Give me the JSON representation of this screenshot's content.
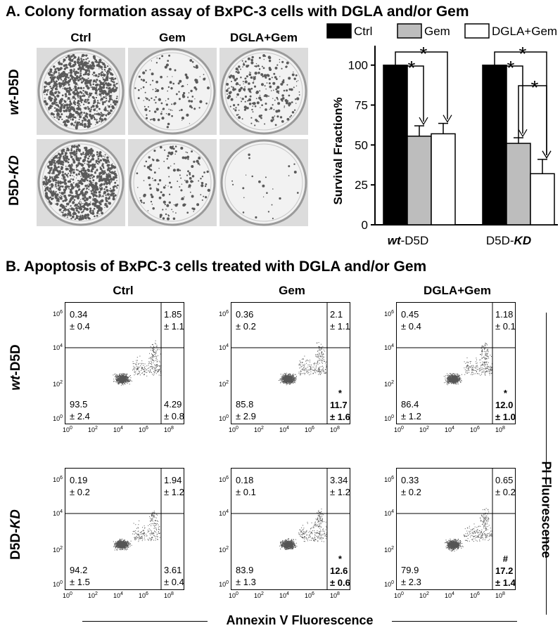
{
  "panel_a": {
    "title": "A. Colony formation assay of BxPC-3 cells with DGLA and/or Gem",
    "column_headers": [
      "Ctrl",
      "Gem",
      "DGLA+Gem"
    ],
    "row_labels": [
      {
        "italic": "wt",
        "rest": "-D5D"
      },
      {
        "plain": "D5D-",
        "italic": "KD"
      }
    ]
  },
  "panel_b": {
    "title": "B. Apoptosis of BxPC-3 cells treated with DGLA and/or Gem",
    "column_headers": [
      "Ctrl",
      "Gem",
      "DGLA+Gem"
    ],
    "row_labels": [
      {
        "italic": "wt",
        "rest": "-D5D"
      },
      {
        "plain": "D5D-",
        "italic": "KD"
      }
    ],
    "x_axis_label": "Annexin V Fluorescence",
    "y_axis_label": "PI Fluorescence",
    "tick_labels": [
      "10",
      "10",
      "10",
      "10",
      "10"
    ],
    "tick_exponents": [
      "0",
      "2",
      "4",
      "6",
      "8"
    ],
    "plots": [
      {
        "ul": [
          "0.34",
          "± 0.4"
        ],
        "ur": [
          "1.85",
          "± 1.1"
        ],
        "ll": [
          "93.5",
          "± 2.4"
        ],
        "lr": [
          "4.29",
          "± 0.8"
        ],
        "mark": "",
        "bold": false
      },
      {
        "ul": [
          "0.36",
          "± 0.2"
        ],
        "ur": [
          "2.1",
          "± 1.1"
        ],
        "ll": [
          "85.8",
          "± 2.9"
        ],
        "lr": [
          "11.7",
          "± 1.6"
        ],
        "mark": "*",
        "bold": true
      },
      {
        "ul": [
          "0.45",
          "± 0.4"
        ],
        "ur": [
          "1.18",
          "± 0.1"
        ],
        "ll": [
          "86.4",
          "± 1.2"
        ],
        "lr": [
          "12.0",
          "± 1.0"
        ],
        "mark": "*",
        "bold": true
      },
      {
        "ul": [
          "0.19",
          "± 0.2"
        ],
        "ur": [
          "1.94",
          "± 1.2"
        ],
        "ll": [
          "94.2",
          "± 1.5"
        ],
        "lr": [
          "3.61",
          "± 0.4"
        ],
        "mark": "",
        "bold": false
      },
      {
        "ul": [
          "0.18",
          "± 0.1"
        ],
        "ur": [
          "3.34",
          "± 1.2"
        ],
        "ll": [
          "83.9",
          "± 1.3"
        ],
        "lr": [
          "12.6",
          "± 0.6"
        ],
        "mark": "*",
        "bold": true
      },
      {
        "ul": [
          "0.33",
          "± 0.2"
        ],
        "ur": [
          "0.65",
          "± 0.2"
        ],
        "ll": [
          "79.9",
          "± 2.3"
        ],
        "lr": [
          "17.2",
          "± 1.4"
        ],
        "mark": "#",
        "bold": true
      }
    ]
  },
  "chart_data": {
    "type": "bar",
    "title": "",
    "ylabel": "Survival Fraction%",
    "xlabel": "",
    "ylim": [
      0,
      110
    ],
    "yticks": [
      "0",
      "25",
      "50",
      "75",
      "100"
    ],
    "groups": [
      {
        "italic": "wt",
        "rest": "-D5D"
      },
      {
        "plain": "D5D-",
        "italic": "KD"
      }
    ],
    "legend_position": "top",
    "series": [
      {
        "name": "Ctrl",
        "color": "#000000",
        "values": [
          100,
          100
        ],
        "errors": [
          0,
          0
        ]
      },
      {
        "name": "Gem",
        "color": "#bdbdbd",
        "values": [
          55.5,
          51
        ],
        "errors": [
          6.5,
          3.5
        ]
      },
      {
        "name": "DGLA+Gem",
        "color": "#ffffff",
        "values": [
          57,
          32
        ],
        "errors": [
          6.5,
          9
        ]
      }
    ],
    "significance_mark": "*",
    "significance": [
      {
        "group": 0,
        "from": 0,
        "to": 1,
        "level": 0
      },
      {
        "group": 0,
        "from": 0,
        "to": 2,
        "level": 1
      },
      {
        "group": 1,
        "from": 0,
        "to": 1,
        "level": 0
      },
      {
        "group": 1,
        "from": 0,
        "to": 2,
        "level": 1
      },
      {
        "group": 1,
        "from": 1,
        "to": 2,
        "level": 2
      }
    ]
  }
}
